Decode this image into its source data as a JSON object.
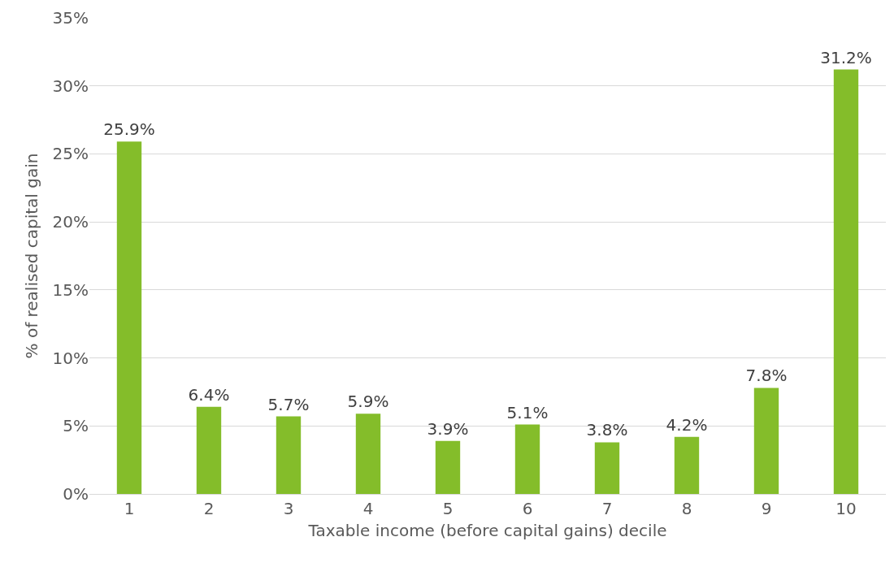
{
  "chart_data": {
    "type": "bar",
    "xlabel": "Taxable income (before capital gains) decile",
    "ylabel": "% of realised capital gain",
    "categories": [
      "1",
      "2",
      "3",
      "4",
      "5",
      "6",
      "7",
      "8",
      "9",
      "10"
    ],
    "values": [
      25.9,
      6.4,
      5.7,
      5.9,
      3.9,
      5.1,
      3.8,
      4.2,
      7.8,
      31.2
    ],
    "value_labels": [
      "25.9%",
      "6.4%",
      "5.7%",
      "5.9%",
      "3.9%",
      "5.1%",
      "3.8%",
      "4.2%",
      "7.8%",
      "31.2%"
    ],
    "color": "#84bd2a",
    "ylim": [
      0,
      35
    ],
    "yticks": [
      {
        "value": 0,
        "label": "0%"
      },
      {
        "value": 5,
        "label": "5%"
      },
      {
        "value": 10,
        "label": "10%"
      },
      {
        "value": 15,
        "label": "15%"
      },
      {
        "value": 20,
        "label": "20%"
      },
      {
        "value": 25,
        "label": "25%"
      },
      {
        "value": 30,
        "label": "30%"
      },
      {
        "value": 35,
        "label": "35%"
      }
    ],
    "grid": "y"
  }
}
